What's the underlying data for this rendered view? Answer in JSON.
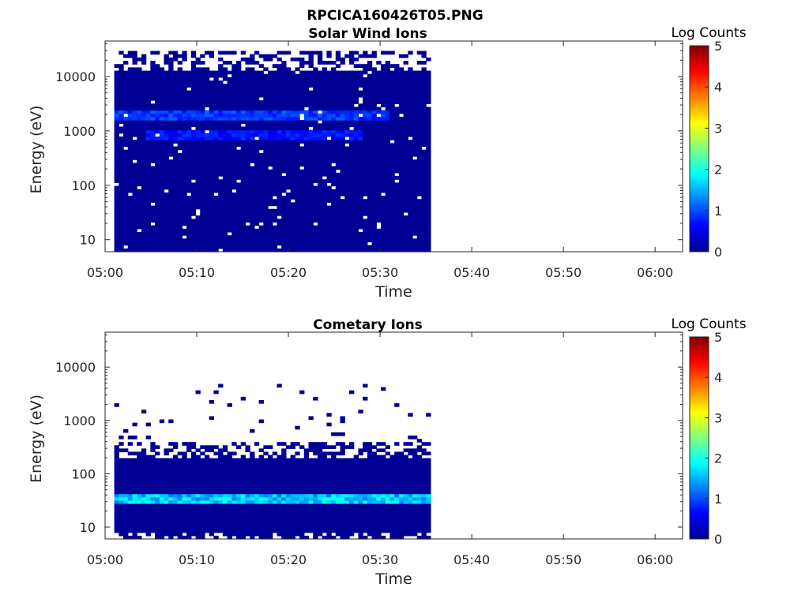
{
  "figure": {
    "title": "RPCICA160426T05.PNG"
  },
  "colorbar": {
    "label": "Log Counts",
    "range": [
      0,
      5
    ],
    "ticks": [
      "0",
      "1",
      "2",
      "3",
      "4",
      "5"
    ],
    "colormap": "jet",
    "colors": [
      "#00008F",
      "#0000FF",
      "#00FFFF",
      "#FFFF00",
      "#FF0000",
      "#800000"
    ]
  },
  "chart_data": [
    {
      "type": "heatmap",
      "title": "Solar Wind Ions",
      "xlabel": "Time",
      "ylabel": "Energy (eV)",
      "x_range": [
        "05:00",
        "06:03"
      ],
      "x_ticks": [
        "05:00",
        "05:10",
        "05:20",
        "05:30",
        "05:40",
        "05:50",
        "06:00"
      ],
      "y_scale": "log",
      "y_range": [
        6,
        45000
      ],
      "y_ticks": [
        "10",
        "100",
        "1000",
        "10000"
      ],
      "data_time_range": [
        "05:01",
        "05:35.5"
      ],
      "background_log_counts": 0.1,
      "energy_band_log_counts": [
        {
          "energy_ev": 2000,
          "time": [
            "05:01",
            "05:31"
          ],
          "log_counts": 0.9
        },
        {
          "energy_ev": 900,
          "time": [
            "05:04",
            "05:28"
          ],
          "log_counts": 0.7
        }
      ]
    },
    {
      "type": "heatmap",
      "title": "Cometary Ions",
      "xlabel": "Time",
      "ylabel": "Energy (eV)",
      "x_range": [
        "05:00",
        "06:03"
      ],
      "x_ticks": [
        "05:00",
        "05:10",
        "05:20",
        "05:30",
        "05:40",
        "05:50",
        "06:00"
      ],
      "y_scale": "log",
      "y_range": [
        6,
        45000
      ],
      "y_ticks": [
        "10",
        "100",
        "1000",
        "10000"
      ],
      "data_time_range": [
        "05:01",
        "05:35.5"
      ],
      "background_log_counts": 0.1,
      "energy_band_log_counts": [
        {
          "energy_ev": 33,
          "time": [
            "05:01",
            "05:35.5"
          ],
          "log_counts": 1.6
        }
      ]
    }
  ]
}
